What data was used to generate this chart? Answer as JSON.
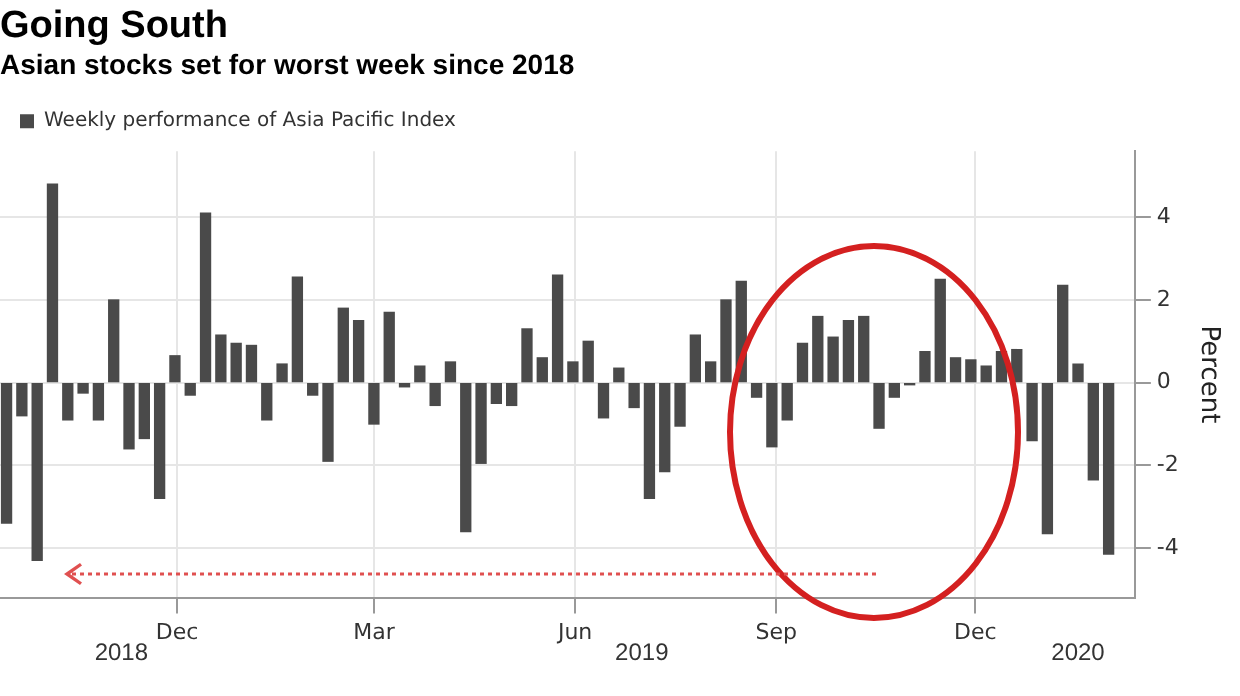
{
  "chart_data": {
    "type": "bar",
    "title": "Going South",
    "subtitle": "Asian stocks set for worst week since 2018",
    "ylabel": "Percent",
    "x": [
      "2018-09-14",
      "2018-09-21",
      "2018-09-28",
      "2018-10-05",
      "2018-10-12",
      "2018-10-19",
      "2018-10-26",
      "2018-11-02",
      "2018-11-09",
      "2018-11-16",
      "2018-11-23",
      "2018-11-30",
      "2018-12-07",
      "2018-12-14",
      "2018-12-21",
      "2018-12-28",
      "2019-01-04",
      "2019-01-11",
      "2019-01-18",
      "2019-01-25",
      "2019-02-01",
      "2019-02-08",
      "2019-02-15",
      "2019-02-22",
      "2019-03-01",
      "2019-03-08",
      "2019-03-15",
      "2019-03-22",
      "2019-03-29",
      "2019-04-05",
      "2019-04-12",
      "2019-04-19",
      "2019-04-26",
      "2019-05-03",
      "2019-05-10",
      "2019-05-17",
      "2019-05-24",
      "2019-05-31",
      "2019-06-07",
      "2019-06-14",
      "2019-06-21",
      "2019-06-28",
      "2019-07-05",
      "2019-07-12",
      "2019-07-19",
      "2019-07-26",
      "2019-08-02",
      "2019-08-09",
      "2019-08-16",
      "2019-08-23",
      "2019-08-30",
      "2019-09-06",
      "2019-09-13",
      "2019-09-20",
      "2019-09-27",
      "2019-10-04",
      "2019-10-11",
      "2019-10-18",
      "2019-10-25",
      "2019-11-01",
      "2019-11-08",
      "2019-11-15",
      "2019-11-22",
      "2019-11-29",
      "2019-12-06",
      "2019-12-13",
      "2019-12-20",
      "2019-12-27",
      "2020-01-03",
      "2020-01-10",
      "2020-01-17",
      "2020-01-24",
      "2020-01-31"
    ],
    "series": [
      {
        "name": "Weekly performance of Asia Pacific Index",
        "color": "#4a4a4a",
        "values": [
          -3.4,
          -0.8,
          -4.3,
          4.8,
          -0.9,
          -0.25,
          -0.9,
          2.0,
          -1.6,
          -1.35,
          -2.8,
          0.65,
          -0.3,
          4.1,
          1.15,
          0.95,
          0.9,
          -0.9,
          0.45,
          2.55,
          -0.3,
          -1.9,
          1.8,
          1.5,
          -1.0,
          1.7,
          -0.1,
          0.4,
          -0.55,
          0.5,
          -3.6,
          -1.95,
          -0.5,
          -0.55,
          1.3,
          0.6,
          2.6,
          0.5,
          1.0,
          -0.85,
          0.35,
          -0.6,
          -2.8,
          -2.15,
          -1.05,
          1.15,
          0.5,
          2.0,
          2.45,
          -0.35,
          -1.55,
          -0.9,
          0.95,
          1.6,
          1.1,
          1.5,
          1.6,
          -1.1,
          -0.35,
          -0.05,
          0.75,
          2.5,
          0.6,
          0.55,
          0.4,
          0.75,
          0.8,
          -1.4,
          -3.65,
          2.35,
          0.45,
          -2.35,
          -4.15
        ]
      }
    ],
    "xlim": [
      "2018-09-11",
      "2020-02-12"
    ],
    "xticks": [
      {
        "value": "2018-12-01",
        "label": "Dec"
      },
      {
        "value": "2019-03-01",
        "label": "Mar"
      },
      {
        "value": "2019-06-01",
        "label": "Jun"
      },
      {
        "value": "2019-09-01",
        "label": "Sep"
      },
      {
        "value": "2019-12-01",
        "label": "Dec"
      }
    ],
    "ylim": [
      -5.2,
      5.6
    ],
    "yticks": [
      -4,
      -2,
      0,
      2,
      4
    ],
    "annotations": [
      "2018",
      "2019",
      "2020"
    ],
    "grid": true,
    "legend": "top left"
  }
}
